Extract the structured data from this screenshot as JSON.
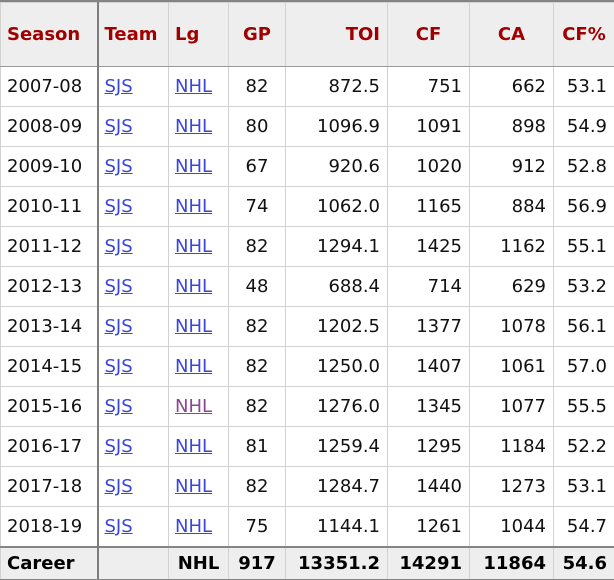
{
  "table": {
    "columns": [
      {
        "key": "season",
        "label": "Season"
      },
      {
        "key": "team",
        "label": "Team"
      },
      {
        "key": "lg",
        "label": "Lg"
      },
      {
        "key": "gp",
        "label": "GP"
      },
      {
        "key": "toi",
        "label": "TOI"
      },
      {
        "key": "cf",
        "label": "CF"
      },
      {
        "key": "ca",
        "label": "CA"
      },
      {
        "key": "cfpct",
        "label": "CF%"
      }
    ],
    "rows": [
      {
        "season": "2007-08",
        "team": "SJS",
        "lg": "NHL",
        "gp": "82",
        "toi": "872.5",
        "cf": "751",
        "ca": "662",
        "cfpct": "53.1",
        "lg_visited": false
      },
      {
        "season": "2008-09",
        "team": "SJS",
        "lg": "NHL",
        "gp": "80",
        "toi": "1096.9",
        "cf": "1091",
        "ca": "898",
        "cfpct": "54.9",
        "lg_visited": false
      },
      {
        "season": "2009-10",
        "team": "SJS",
        "lg": "NHL",
        "gp": "67",
        "toi": "920.6",
        "cf": "1020",
        "ca": "912",
        "cfpct": "52.8",
        "lg_visited": false
      },
      {
        "season": "2010-11",
        "team": "SJS",
        "lg": "NHL",
        "gp": "74",
        "toi": "1062.0",
        "cf": "1165",
        "ca": "884",
        "cfpct": "56.9",
        "lg_visited": false
      },
      {
        "season": "2011-12",
        "team": "SJS",
        "lg": "NHL",
        "gp": "82",
        "toi": "1294.1",
        "cf": "1425",
        "ca": "1162",
        "cfpct": "55.1",
        "lg_visited": false
      },
      {
        "season": "2012-13",
        "team": "SJS",
        "lg": "NHL",
        "gp": "48",
        "toi": "688.4",
        "cf": "714",
        "ca": "629",
        "cfpct": "53.2",
        "lg_visited": false
      },
      {
        "season": "2013-14",
        "team": "SJS",
        "lg": "NHL",
        "gp": "82",
        "toi": "1202.5",
        "cf": "1377",
        "ca": "1078",
        "cfpct": "56.1",
        "lg_visited": false
      },
      {
        "season": "2014-15",
        "team": "SJS",
        "lg": "NHL",
        "gp": "82",
        "toi": "1250.0",
        "cf": "1407",
        "ca": "1061",
        "cfpct": "57.0",
        "lg_visited": false
      },
      {
        "season": "2015-16",
        "team": "SJS",
        "lg": "NHL",
        "gp": "82",
        "toi": "1276.0",
        "cf": "1345",
        "ca": "1077",
        "cfpct": "55.5",
        "lg_visited": true
      },
      {
        "season": "2016-17",
        "team": "SJS",
        "lg": "NHL",
        "gp": "81",
        "toi": "1259.4",
        "cf": "1295",
        "ca": "1184",
        "cfpct": "52.2",
        "lg_visited": false
      },
      {
        "season": "2017-18",
        "team": "SJS",
        "lg": "NHL",
        "gp": "82",
        "toi": "1284.7",
        "cf": "1440",
        "ca": "1273",
        "cfpct": "53.1",
        "lg_visited": false
      },
      {
        "season": "2018-19",
        "team": "SJS",
        "lg": "NHL",
        "gp": "75",
        "toi": "1144.1",
        "cf": "1261",
        "ca": "1044",
        "cfpct": "54.7",
        "lg_visited": false
      }
    ],
    "career": {
      "season": "Career",
      "team": "",
      "lg": "NHL",
      "gp": "917",
      "toi": "13351.2",
      "cf": "14291",
      "ca": "11864",
      "cfpct": "54.6"
    }
  },
  "colors": {
    "header_text": "#a00000",
    "header_bg": "#eeeeee",
    "link": "#3a46d8",
    "link_visited": "#8c4696",
    "body_text": "#111111",
    "light_border": "#d2d2d2",
    "strong_border": "#7d7d7d"
  }
}
